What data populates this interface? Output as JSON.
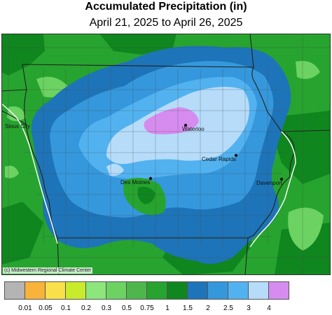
{
  "title": "Accumulated Precipitation (in)",
  "subtitle": "April 21, 2025 to April 26, 2025",
  "credit": "(c) Midwestern Regional Climate Center",
  "cities": [
    {
      "name": "Sioux City",
      "marker": false
    },
    {
      "name": "Waterloo",
      "marker": true
    },
    {
      "name": "Cedar Rapids",
      "marker": true
    },
    {
      "name": "Des Moines",
      "marker": true
    },
    {
      "name": "Davenport",
      "marker": true
    }
  ],
  "legend": {
    "colors": [
      "#b4b4b4",
      "#f7b33a",
      "#f7e04a",
      "#c8ec2c",
      "#8ce67c",
      "#6cd262",
      "#4fb64c",
      "#27a42f",
      "#10861f",
      "#1e74b8",
      "#3598dc",
      "#52b2f0",
      "#b6dcfa",
      "#d68cef"
    ],
    "labels": [
      "0.01",
      "0.05",
      "0.1",
      "0.2",
      "0.3",
      "0.5",
      "0.75",
      "1",
      "1.5",
      "2",
      "2.5",
      "3",
      "4"
    ]
  },
  "colors": {
    "state_border": "#222222",
    "county_border": "#444444",
    "water": "#ffffff"
  }
}
